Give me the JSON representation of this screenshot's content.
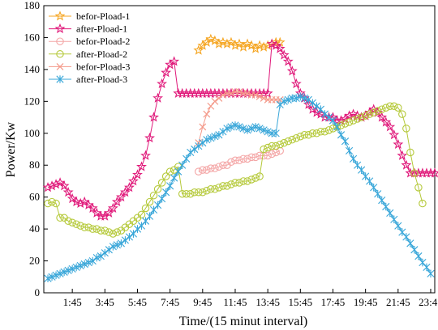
{
  "chart_data": {
    "type": "line",
    "xlabel": "Time/(15 minut interval)",
    "ylabel": "Power/Kw",
    "xlim": [
      0,
      96
    ],
    "ylim": [
      0,
      180
    ],
    "xticks": [
      {
        "pos": 7,
        "label": "1:45"
      },
      {
        "pos": 15,
        "label": "3:45"
      },
      {
        "pos": 23,
        "label": "5:45"
      },
      {
        "pos": 31,
        "label": "7:45"
      },
      {
        "pos": 39,
        "label": "9:45"
      },
      {
        "pos": 47,
        "label": "11:45"
      },
      {
        "pos": 55,
        "label": "13:45"
      },
      {
        "pos": 63,
        "label": "15:45"
      },
      {
        "pos": 71,
        "label": "17:45"
      },
      {
        "pos": 79,
        "label": "19:45"
      },
      {
        "pos": 87,
        "label": "21:45"
      },
      {
        "pos": 95,
        "label": "23:45"
      }
    ],
    "yticks": [
      0,
      20,
      40,
      60,
      80,
      100,
      120,
      140,
      160,
      180
    ],
    "legend_position": "top-left",
    "series": [
      {
        "name": "befor-Pload-1",
        "color": "#f5a623",
        "marker": "star-open",
        "x": [
          38,
          39,
          40,
          41,
          42,
          43,
          44,
          45,
          46,
          47,
          48,
          49,
          50,
          51,
          52,
          53,
          54,
          55,
          56,
          57,
          58
        ],
        "y": [
          152,
          155,
          157,
          159,
          158,
          156,
          157,
          156,
          157,
          155,
          156,
          154,
          156,
          155,
          153,
          155,
          154,
          155,
          156,
          157,
          157
        ]
      },
      {
        "name": "after-Pload-1",
        "color": "#e0197a",
        "marker": "star-open",
        "x": [
          1,
          2,
          3,
          4,
          5,
          6,
          7,
          8,
          9,
          10,
          11,
          12,
          13,
          14,
          15,
          16,
          17,
          18,
          19,
          20,
          21,
          22,
          23,
          24,
          25,
          26,
          27,
          28,
          29,
          30,
          31,
          32,
          33,
          34,
          35,
          36,
          37,
          38,
          39,
          40,
          41,
          42,
          43,
          44,
          45,
          46,
          47,
          48,
          49,
          50,
          51,
          52,
          53,
          54,
          55,
          56,
          57,
          58,
          59,
          60,
          61,
          62,
          63,
          64,
          65,
          66,
          67,
          68,
          69,
          70,
          71,
          72,
          73,
          74,
          75,
          76,
          77,
          78,
          79,
          80,
          81,
          82,
          83,
          84,
          85,
          86,
          87,
          88,
          89,
          90,
          91,
          92,
          93,
          94,
          95,
          96
        ],
        "y": [
          66,
          67,
          68,
          69,
          67,
          63,
          59,
          57,
          56,
          57,
          55,
          53,
          50,
          48,
          48,
          50,
          53,
          57,
          60,
          63,
          66,
          70,
          74,
          79,
          86,
          97,
          110,
          122,
          131,
          138,
          143,
          145,
          125,
          125,
          125,
          125,
          125,
          125,
          125,
          125,
          125,
          125,
          125,
          125,
          125,
          125,
          125,
          125,
          125,
          125,
          125,
          125,
          125,
          125,
          125,
          156,
          155,
          153,
          149,
          145,
          139,
          131,
          125,
          122,
          118,
          115,
          113,
          112,
          110,
          110,
          110,
          108,
          108,
          109,
          111,
          112,
          111,
          110,
          111,
          113,
          115,
          113,
          110,
          107,
          104,
          99,
          93,
          86,
          80,
          75,
          75,
          75,
          75,
          75,
          75,
          75
        ]
      },
      {
        "name": "befor-Pload-2",
        "color": "#f4a6a6",
        "marker": "circle-open",
        "x": [
          38,
          39,
          40,
          41,
          42,
          43,
          44,
          45,
          46,
          47,
          48,
          49,
          50,
          51,
          52,
          53,
          54,
          55,
          56,
          57,
          58
        ],
        "y": [
          76,
          77,
          77,
          78,
          78,
          79,
          80,
          80,
          82,
          83,
          83,
          84,
          84,
          85,
          85,
          86,
          86,
          86,
          87,
          88,
          89
        ]
      },
      {
        "name": "after-Pload-2",
        "color": "#b5c93a",
        "marker": "circle-open",
        "x": [
          1,
          2,
          3,
          4,
          5,
          6,
          7,
          8,
          9,
          10,
          11,
          12,
          13,
          14,
          15,
          16,
          17,
          18,
          19,
          20,
          21,
          22,
          23,
          24,
          25,
          26,
          27,
          28,
          29,
          30,
          31,
          32,
          33,
          34,
          35,
          36,
          37,
          38,
          39,
          40,
          41,
          42,
          43,
          44,
          45,
          46,
          47,
          48,
          49,
          50,
          51,
          52,
          53,
          54,
          55,
          56,
          57,
          58,
          59,
          60,
          61,
          62,
          63,
          64,
          65,
          66,
          67,
          68,
          69,
          70,
          71,
          72,
          73,
          74,
          75,
          76,
          77,
          78,
          79,
          80,
          81,
          82,
          83,
          84,
          85,
          86,
          87,
          88,
          89,
          90,
          91,
          92,
          93
        ],
        "y": [
          56,
          57,
          56,
          47,
          47,
          45,
          44,
          43,
          42,
          41,
          41,
          40,
          40,
          39,
          39,
          38,
          37,
          38,
          39,
          41,
          43,
          45,
          47,
          49,
          53,
          57,
          61,
          65,
          69,
          73,
          76,
          77,
          79,
          62,
          62,
          62,
          63,
          63,
          63,
          64,
          65,
          65,
          66,
          67,
          67,
          68,
          69,
          69,
          70,
          70,
          71,
          72,
          73,
          90,
          91,
          92,
          92,
          93,
          94,
          95,
          96,
          97,
          98,
          99,
          99,
          100,
          100,
          101,
          101,
          102,
          103,
          104,
          105,
          106,
          107,
          108,
          109,
          110,
          111,
          112,
          113,
          114,
          115,
          116,
          117,
          117,
          116,
          112,
          103,
          88,
          75,
          66,
          56
        ]
      },
      {
        "name": "befor-Pload-3",
        "color": "#f49a8a",
        "marker": "x",
        "x": [
          38,
          39,
          40,
          41,
          42,
          43,
          44,
          45,
          46,
          47,
          48,
          49,
          50,
          51,
          52,
          53,
          54,
          55,
          56,
          57,
          58
        ],
        "y": [
          94,
          104,
          112,
          117,
          120,
          122,
          124,
          125,
          125,
          126,
          126,
          125,
          125,
          124,
          124,
          123,
          122,
          121,
          121,
          121,
          121
        ]
      },
      {
        "name": "after-Pload-3",
        "color": "#3aa7d9",
        "marker": "asterisk",
        "x": [
          1,
          2,
          3,
          4,
          5,
          6,
          7,
          8,
          9,
          10,
          11,
          12,
          13,
          14,
          15,
          16,
          17,
          18,
          19,
          20,
          21,
          22,
          23,
          24,
          25,
          26,
          27,
          28,
          29,
          30,
          31,
          32,
          33,
          34,
          35,
          36,
          37,
          38,
          39,
          40,
          41,
          42,
          43,
          44,
          45,
          46,
          47,
          48,
          49,
          50,
          51,
          52,
          53,
          54,
          55,
          56,
          57,
          58,
          59,
          60,
          61,
          62,
          63,
          64,
          65,
          66,
          67,
          68,
          69,
          70,
          71,
          72,
          73,
          74,
          75,
          76,
          77,
          78,
          79,
          80,
          81,
          82,
          83,
          84,
          85,
          86,
          87,
          88,
          89,
          90,
          91,
          92,
          93,
          94,
          95
        ],
        "y": [
          9,
          10,
          11,
          12,
          13,
          14,
          15,
          16,
          17,
          18,
          19,
          20,
          22,
          23,
          25,
          27,
          29,
          30,
          31,
          33,
          35,
          37,
          40,
          42,
          45,
          48,
          52,
          55,
          59,
          63,
          67,
          72,
          76,
          80,
          84,
          88,
          90,
          92,
          94,
          96,
          97,
          98,
          99,
          101,
          103,
          104,
          105,
          104,
          103,
          102,
          103,
          104,
          103,
          102,
          101,
          100,
          100,
          118,
          120,
          121,
          122,
          122,
          123,
          122,
          121,
          119,
          117,
          115,
          112,
          110,
          108,
          104,
          99,
          95,
          89,
          84,
          80,
          77,
          73,
          70,
          66,
          62,
          58,
          54,
          50,
          46,
          42,
          38,
          35,
          31,
          27,
          23,
          19,
          16,
          12
        ]
      }
    ]
  }
}
